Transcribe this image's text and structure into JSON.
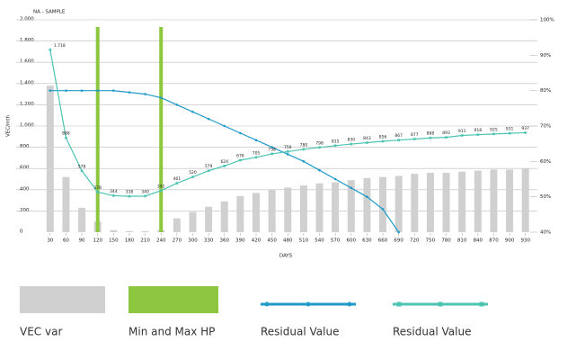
{
  "chart_data": {
    "type": "combo",
    "title": "NA - SAMPLE",
    "x_label": "DAYS",
    "y_label": "VEC/mth",
    "categories": [
      30,
      60,
      90,
      120,
      150,
      180,
      210,
      240,
      270,
      300,
      330,
      360,
      390,
      420,
      450,
      480,
      510,
      540,
      570,
      600,
      630,
      660,
      690,
      720,
      750,
      780,
      810,
      840,
      870,
      900,
      930
    ],
    "ylim": [
      0,
      2000
    ],
    "yticks": [
      0,
      200,
      400,
      600,
      800,
      {
        "value": 1000,
        "label": "1.000"
      },
      {
        "value": 1200,
        "label": "1.200"
      },
      {
        "value": 1400,
        "label": "1.400"
      },
      {
        "value": 1600,
        "label": "1.600"
      },
      {
        "value": 1800,
        "label": "1.800"
      },
      {
        "value": 2000,
        "label": "2.000"
      }
    ],
    "y2lim": [
      40,
      100
    ],
    "y2ticks": [
      {
        "value": 40,
        "label": "40%"
      },
      {
        "value": 50,
        "label": "50%"
      },
      {
        "value": 60,
        "label": "60%"
      },
      {
        "value": 70,
        "label": "70%"
      },
      {
        "value": 80,
        "label": "80%"
      },
      {
        "value": 90,
        "label": "90%"
      },
      {
        "value": 100,
        "label": "100%"
      }
    ],
    "grid": true,
    "markers": {
      "name": "Min and Max HP",
      "color": "#8dc63f",
      "x": [
        120,
        240
      ]
    },
    "series": [
      {
        "name": "VEC var",
        "kind": "bar",
        "color": "#d0d0d0",
        "values": [
          1380,
          520,
          230,
          100,
          20,
          10,
          10,
          20,
          130,
          190,
          240,
          290,
          340,
          370,
          400,
          420,
          440,
          460,
          470,
          490,
          510,
          520,
          530,
          550,
          560,
          560,
          570,
          580,
          590,
          590,
          600
        ]
      },
      {
        "name": "Residual Value",
        "kind": "line",
        "axis": "y2",
        "color": "#1f9ac9",
        "marker": "circle",
        "values": [
          80,
          80,
          80,
          80,
          80,
          79.5,
          79,
          78,
          76,
          74,
          72,
          70,
          68,
          66,
          64,
          62,
          60,
          57.5,
          55,
          52.5,
          50,
          46.5,
          40,
          null,
          null,
          null,
          null,
          null,
          null,
          null,
          null
        ]
      },
      {
        "name": "Residual Value",
        "kind": "line",
        "color": "#4cc4b4",
        "marker": "square",
        "values": [
          1718,
          888,
          578,
          378,
          344,
          338,
          340,
          391,
          461,
          520,
          579,
          624,
          678,
          705,
          738,
          759,
          780,
          798,
          815,
          830,
          843,
          856,
          867,
          877,
          888,
          893,
          911,
          918,
          925,
          931,
          937
        ],
        "value_labels": [
          "1.718",
          "888",
          "578",
          "378",
          "344",
          "338",
          "340",
          "391",
          "461",
          "520",
          "579",
          "624",
          "678",
          "705",
          "738",
          "759",
          "780",
          "798",
          "815",
          "830",
          "843",
          "856",
          "867",
          "877",
          "888",
          "893",
          "911",
          "918",
          "925",
          "931",
          "937"
        ]
      }
    ]
  }
}
